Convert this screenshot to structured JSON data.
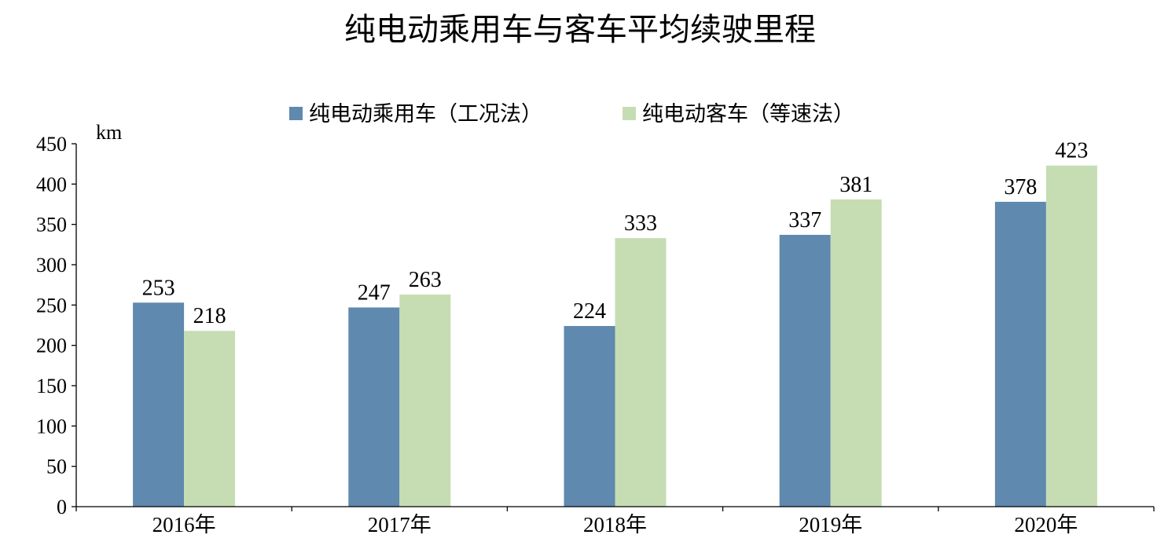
{
  "chart_data": {
    "type": "bar",
    "title": "纯电动乘用车与客车平均续驶里程",
    "ylabel": "km",
    "xlabel": "",
    "ylim": [
      0,
      450
    ],
    "yticks": [
      0,
      50,
      100,
      150,
      200,
      250,
      300,
      350,
      400,
      450
    ],
    "grid": false,
    "legend_position": "top",
    "categories": [
      "2016年",
      "2017年",
      "2018年",
      "2019年",
      "2020年"
    ],
    "series": [
      {
        "name": "纯电动乘用车（工况法）",
        "color": "#5f89ae",
        "values": [
          253,
          247,
          224,
          337,
          378
        ]
      },
      {
        "name": "纯电动客车（等速法）",
        "color": "#c6ddb3",
        "values": [
          218,
          263,
          333,
          381,
          423
        ]
      }
    ]
  }
}
